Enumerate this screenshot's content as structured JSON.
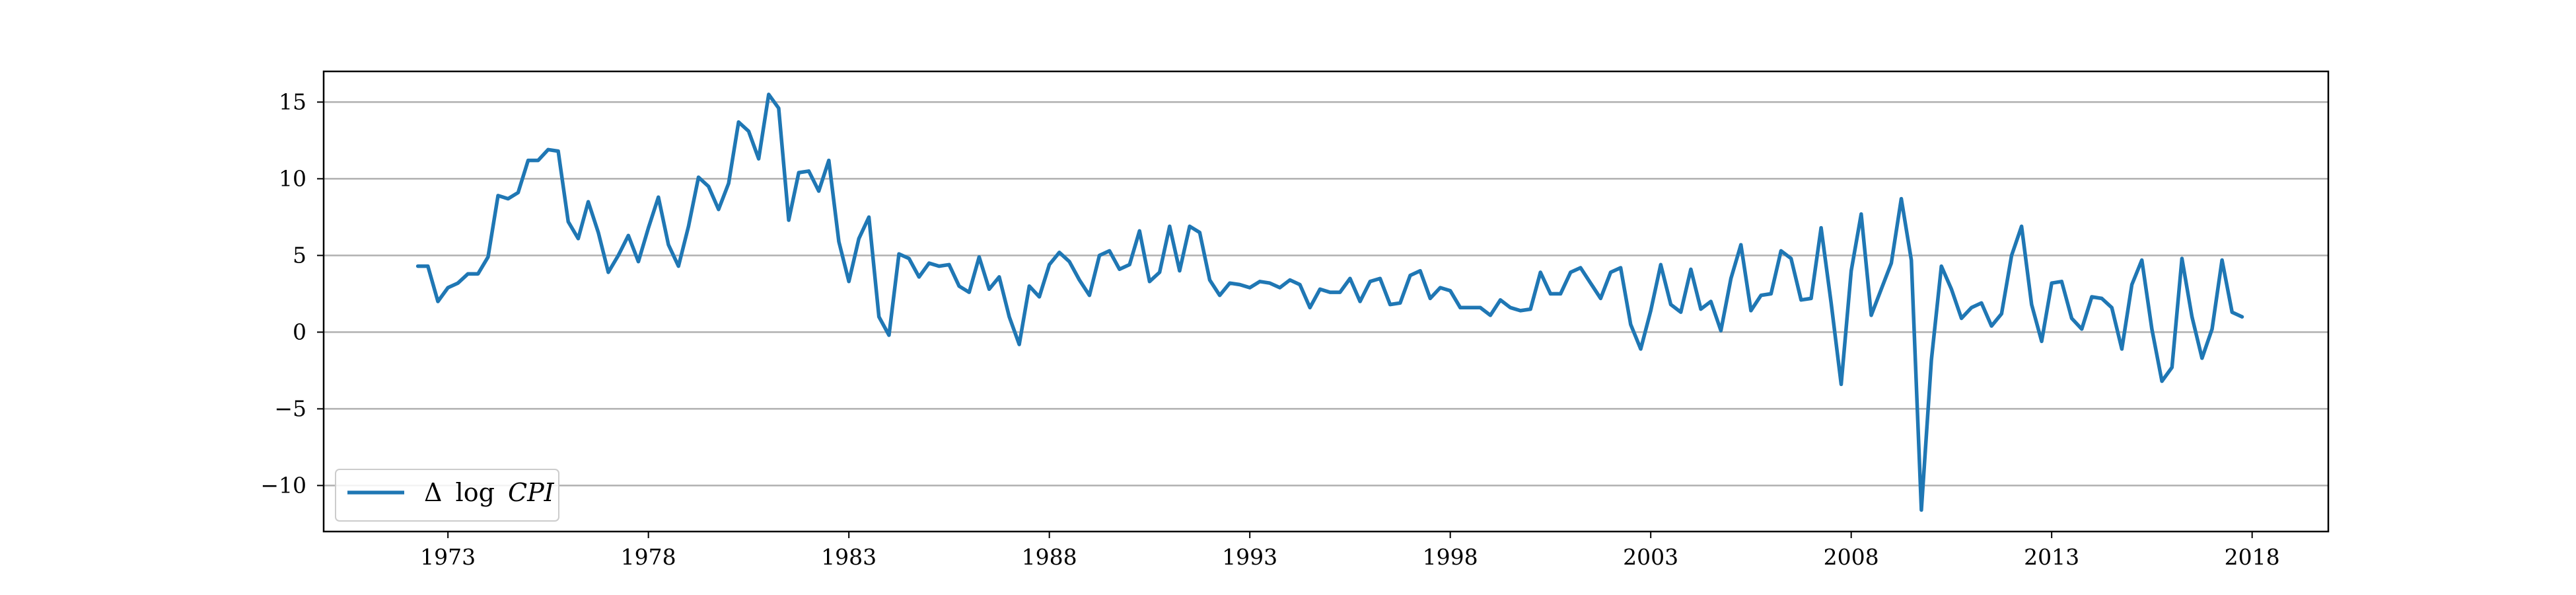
{
  "chart_data": {
    "type": "line",
    "title": "",
    "xlabel": "",
    "ylabel": "",
    "xlim": [
      1969.9,
      2019.9
    ],
    "ylim": [
      -13,
      17
    ],
    "grid": {
      "y": true,
      "x": false
    },
    "legend": {
      "placement": "lower-left"
    },
    "colors": {
      "series": "#1f77b4",
      "grid": "#b0b0b0",
      "axes": "#000000"
    },
    "xticks": [
      1973,
      1978,
      1983,
      1988,
      1993,
      1998,
      2003,
      2008,
      2013,
      2018
    ],
    "xtick_labels": [
      "1973",
      "1978",
      "1983",
      "1988",
      "1993",
      "1998",
      "2003",
      "2008",
      "2013",
      "2018"
    ],
    "yticks": [
      15,
      10,
      5,
      0,
      -5,
      -10
    ],
    "ytick_labels": [
      "15",
      "10",
      "5",
      "0",
      "−5",
      "−10"
    ],
    "series": [
      {
        "name": "Δ log CPI",
        "label_parts": {
          "delta": "Δ",
          "op": "log",
          "var": "CPI"
        },
        "x_start": 1972.25,
        "x_step": 0.25,
        "values": [
          4.3,
          4.3,
          2.0,
          2.9,
          3.2,
          3.8,
          3.8,
          4.9,
          8.9,
          8.7,
          9.1,
          11.2,
          11.2,
          11.9,
          11.8,
          7.2,
          6.1,
          8.5,
          6.5,
          3.9,
          5.0,
          6.3,
          4.6,
          6.8,
          8.8,
          5.7,
          4.3,
          6.9,
          10.1,
          9.5,
          8.0,
          9.7,
          13.7,
          13.1,
          11.3,
          15.5,
          14.6,
          7.3,
          10.4,
          10.5,
          9.2,
          11.2,
          5.9,
          3.3,
          6.1,
          7.5,
          1.0,
          -0.2,
          5.1,
          4.8,
          3.6,
          4.5,
          4.3,
          4.4,
          3.0,
          2.6,
          4.9,
          2.8,
          3.6,
          1.0,
          -0.8,
          3.0,
          2.3,
          4.4,
          5.2,
          4.6,
          3.4,
          2.4,
          5.0,
          5.3,
          4.1,
          4.4,
          6.6,
          3.3,
          3.9,
          6.9,
          4.0,
          6.9,
          6.5,
          3.4,
          2.4,
          3.2,
          3.1,
          2.9,
          3.3,
          3.2,
          2.9,
          3.4,
          3.1,
          1.6,
          2.8,
          2.6,
          2.6,
          3.5,
          2.0,
          3.3,
          3.5,
          1.8,
          1.9,
          3.7,
          4.0,
          2.2,
          2.9,
          2.7,
          1.6,
          1.6,
          1.6,
          1.1,
          2.1,
          1.6,
          1.4,
          1.5,
          3.9,
          2.5,
          2.5,
          3.9,
          4.2,
          3.2,
          2.2,
          3.9,
          4.2,
          0.5,
          -1.1,
          1.4,
          4.4,
          1.8,
          1.3,
          4.1,
          1.5,
          2.0,
          0.1,
          3.5,
          5.7,
          1.4,
          2.4,
          2.5,
          5.3,
          4.8,
          2.1,
          2.2,
          6.8,
          1.9,
          -3.4,
          4.0,
          7.7,
          1.1,
          2.8,
          4.5,
          8.7,
          4.7,
          -11.6,
          -1.8,
          4.3,
          2.8,
          0.9,
          1.6,
          1.9,
          0.4,
          1.2,
          5.0,
          6.9,
          1.8,
          -0.6,
          3.2,
          3.3,
          0.9,
          0.2,
          2.3,
          2.2,
          1.6,
          -1.1,
          3.1,
          4.7,
          0.2,
          -3.2,
          -2.3,
          4.8,
          1.0,
          -1.7,
          0.2,
          4.7,
          1.3,
          1.0
        ]
      }
    ]
  }
}
